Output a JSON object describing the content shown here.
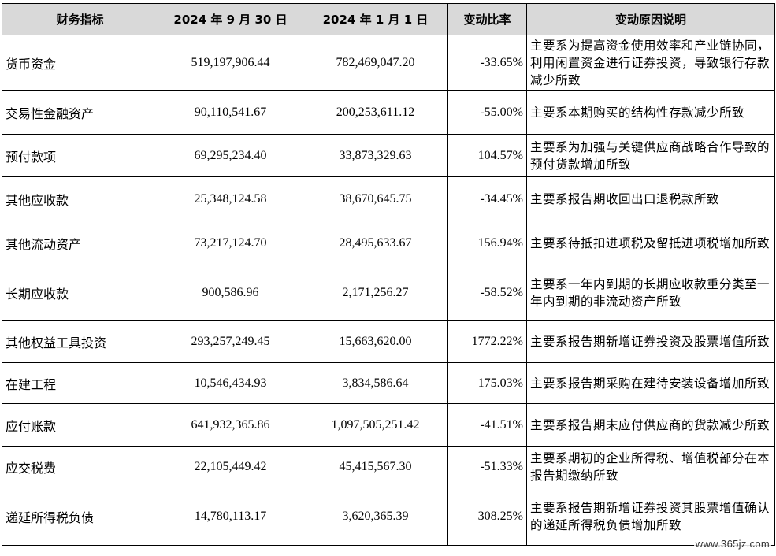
{
  "table": {
    "headers": [
      "财务指标",
      "2024 年 9 月 30 日",
      "2024 年 1 月 1 日",
      "变动比率",
      "变动原因说明"
    ],
    "rows": [
      {
        "item": "货币资金",
        "sep30": "519,197,906.44",
        "jan1": "782,469,047.20",
        "ratio": "-33.65%",
        "reason": "主要系为提高资金使用效率和产业链协同，利用闲置资金进行证券投资，导致银行存款减少所致"
      },
      {
        "item": "交易性金融资产",
        "sep30": "90,110,541.67",
        "jan1": "200,253,611.12",
        "ratio": "-55.00%",
        "reason": "主要系本期购买的结构性存款减少所致"
      },
      {
        "item": "预付款项",
        "sep30": "69,295,234.40",
        "jan1": "33,873,329.63",
        "ratio": "104.57%",
        "reason": "主要系为加强与关键供应商战略合作导致的预付货款增加所致"
      },
      {
        "item": "其他应收款",
        "sep30": "25,348,124.58",
        "jan1": "38,670,645.75",
        "ratio": "-34.45%",
        "reason": "主要系报告期收回出口退税款所致"
      },
      {
        "item": "其他流动资产",
        "sep30": "73,217,124.70",
        "jan1": "28,495,633.67",
        "ratio": "156.94%",
        "reason": "主要系待抵扣进项税及留抵进项税增加所致"
      },
      {
        "item": "长期应收款",
        "sep30": "900,586.96",
        "jan1": "2,171,256.27",
        "ratio": "-58.52%",
        "reason": "主要系一年内到期的长期应收款重分类至一年内到期的非流动资产所致"
      },
      {
        "item": "其他权益工具投资",
        "sep30": "293,257,249.45",
        "jan1": "15,663,620.00",
        "ratio": "1772.22%",
        "reason": "主要系报告期新增证券投资及股票增值所致"
      },
      {
        "item": "在建工程",
        "sep30": "10,546,434.93",
        "jan1": "3,834,586.64",
        "ratio": "175.03%",
        "reason": "主要系报告期采购在建待安装设备增加所致"
      },
      {
        "item": "应付账款",
        "sep30": "641,932,365.86",
        "jan1": "1,097,505,251.42",
        "ratio": "-41.51%",
        "reason": "主要系报告期末应付供应商的货款减少所致"
      },
      {
        "item": "应交税费",
        "sep30": "22,105,449.42",
        "jan1": "45,415,567.30",
        "ratio": "-51.33%",
        "reason": "主要系期初的企业所得税、增值税部分在本报告期缴纳所致"
      },
      {
        "item": "递延所得税负债",
        "sep30": "14,780,113.17",
        "jan1": "3,620,365.39",
        "ratio": "308.25%",
        "reason": "主要系报告期新增证券投资其股票增值确认的递延所得税负债增加所致"
      }
    ]
  },
  "watermark": "www.365jz.com"
}
